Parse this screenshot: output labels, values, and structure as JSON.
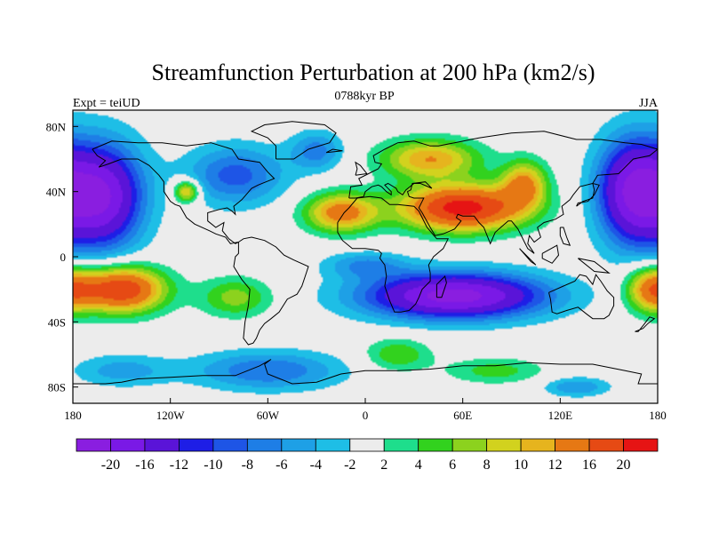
{
  "chart_data": {
    "type": "heatmap",
    "title": "Streamfunction Perturbation at 200 hPa (km2/s)",
    "subtitle_left": "Expt = teiUD",
    "subtitle_center": "0788kyr BP",
    "subtitle_right": "JJA",
    "x_ticks": [
      "180",
      "120W",
      "60W",
      "0",
      "60E",
      "120E",
      "180"
    ],
    "x_tick_values": [
      -180,
      -120,
      -60,
      0,
      60,
      120,
      180
    ],
    "y_ticks": [
      "80N",
      "40N",
      "0",
      "40S",
      "80S"
    ],
    "y_tick_values": [
      80,
      40,
      0,
      -40,
      -80
    ],
    "xlim": [
      -180,
      180
    ],
    "ylim": [
      -90,
      90
    ],
    "colorbar": {
      "levels": [
        "-20",
        "-16",
        "-12",
        "-10",
        "-8",
        "-6",
        "-4",
        "-2",
        "2",
        "4",
        "6",
        "8",
        "10",
        "12",
        "16",
        "20"
      ],
      "level_values": [
        -20,
        -16,
        -12,
        -10,
        -8,
        -6,
        -4,
        -2,
        2,
        4,
        6,
        8,
        10,
        12,
        16,
        20
      ],
      "colors": [
        "#8a1ee0",
        "#7a19e6",
        "#5a14d8",
        "#1e1ee6",
        "#1e55e6",
        "#1e7ee6",
        "#1ea0e6",
        "#1ebee6",
        "#ececec",
        "#1ede8c",
        "#32d21e",
        "#8cd21e",
        "#d2d21e",
        "#e6b41e",
        "#e67814",
        "#e64a14",
        "#e61414"
      ]
    },
    "field_centers": [
      {
        "lon": 60,
        "lat": 30,
        "value": 22,
        "rlon": 38,
        "rlat": 14
      },
      {
        "lon": 40,
        "lat": 60,
        "value": 12,
        "rlon": 30,
        "rlat": 12
      },
      {
        "lon": -15,
        "lat": 27,
        "value": 14,
        "rlon": 22,
        "rlat": 12
      },
      {
        "lon": 98,
        "lat": 45,
        "value": 12,
        "rlon": 14,
        "rlat": 14
      },
      {
        "lon": -110,
        "lat": 40,
        "value": 12,
        "rlon": 8,
        "rlat": 7
      },
      {
        "lon": -162,
        "lat": 37,
        "value": -20,
        "rlon": 25,
        "rlat": 32
      },
      {
        "lon": 165,
        "lat": 40,
        "value": -20,
        "rlon": 22,
        "rlat": 32
      },
      {
        "lon": 55,
        "lat": -24,
        "value": -22,
        "rlon": 55,
        "rlat": 14
      },
      {
        "lon": -150,
        "lat": -20,
        "value": 20,
        "rlon": 26,
        "rlat": 14
      },
      {
        "lon": 177,
        "lat": -20,
        "value": 14,
        "rlon": 16,
        "rlat": 14
      },
      {
        "lon": -80,
        "lat": -25,
        "value": 7,
        "rlon": 22,
        "rlat": 12
      },
      {
        "lon": -80,
        "lat": 50,
        "value": -9,
        "rlon": 30,
        "rlat": 18
      },
      {
        "lon": -30,
        "lat": 65,
        "value": -7,
        "rlon": 16,
        "rlat": 12
      },
      {
        "lon": -60,
        "lat": -70,
        "value": -8,
        "rlon": 45,
        "rlat": 12
      },
      {
        "lon": 20,
        "lat": -60,
        "value": 6,
        "rlon": 20,
        "rlat": 10
      },
      {
        "lon": 80,
        "lat": -70,
        "value": 5,
        "rlon": 30,
        "rlat": 8
      },
      {
        "lon": 130,
        "lat": -80,
        "value": -6,
        "rlon": 20,
        "rlat": 6
      },
      {
        "lon": 0,
        "lat": -5,
        "value": -6,
        "rlon": 25,
        "rlat": 8
      },
      {
        "lon": -150,
        "lat": -70,
        "value": -5,
        "rlon": 30,
        "rlat": 10
      }
    ]
  }
}
